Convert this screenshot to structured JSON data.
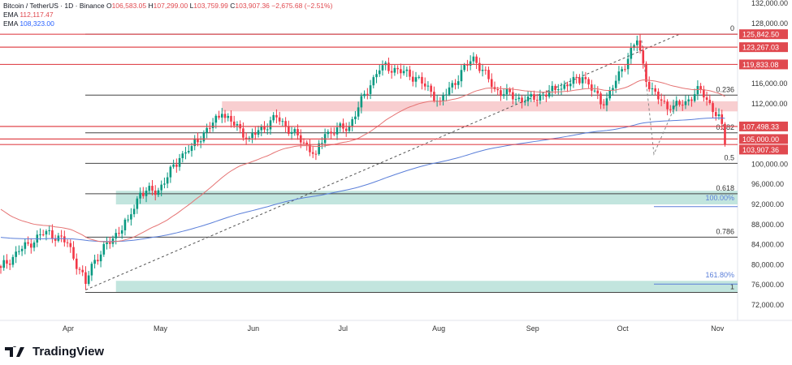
{
  "header": {
    "symbol": "Bitcoin / TetherUS · 1D · Binance",
    "o_label": "O",
    "o": "106,583.05",
    "h_label": "H",
    "h": "107,299.00",
    "l_label": "L",
    "l": "103,759.99",
    "c_label": "C",
    "c": "103,907.36",
    "change": "−2,675.68 (−2.51%)",
    "ema1_label": "EMA",
    "ema1": "112,117.47",
    "ema2_label": "EMA",
    "ema2": "108,323.00"
  },
  "colors": {
    "up": "#089981",
    "down": "#f23645",
    "ema_fast": "#e57373",
    "ema_slow": "#5b7fd9",
    "level": "#e0494f",
    "zone_pink": "#f7c5c8",
    "zone_teal": "#b7e0d8"
  },
  "chart_data": {
    "type": "candlestick",
    "ylim": [
      70000,
      132000
    ],
    "y_ticks": [
      "132,000.00",
      "128,000.00",
      "116,000.00",
      "112,000.00",
      "100,000.00",
      "96,000.00",
      "92,000.00",
      "88,000.00",
      "84,000.00",
      "80,000.00",
      "76,000.00",
      "72,000.00"
    ],
    "x_ticks": [
      {
        "label": "Apr",
        "date": "2025-04-01"
      },
      {
        "label": "May",
        "date": "2025-05-01"
      },
      {
        "label": "Jun",
        "date": "2025-06-01"
      },
      {
        "label": "Jul",
        "date": "2025-07-01"
      },
      {
        "label": "Aug",
        "date": "2025-08-01"
      },
      {
        "label": "Sep",
        "date": "2025-09-01"
      },
      {
        "label": "Oct",
        "date": "2025-10-01"
      },
      {
        "label": "Nov",
        "date": "2025-11-01"
      }
    ],
    "x_range": [
      "2025-03-10",
      "2025-11-06"
    ],
    "approx_closes": [
      [
        "2025-03-10",
        79400
      ],
      [
        "2025-03-16",
        82700
      ],
      [
        "2025-03-25",
        86700
      ],
      [
        "2025-04-01",
        84300
      ],
      [
        "2025-04-07",
        76200
      ],
      [
        "2025-04-09",
        80200
      ],
      [
        "2025-04-21",
        89000
      ],
      [
        "2025-04-25",
        94300
      ],
      [
        "2025-05-01",
        94800
      ],
      [
        "2025-05-08",
        101200
      ],
      [
        "2025-05-12",
        103600
      ],
      [
        "2025-05-22",
        110000
      ],
      [
        "2025-05-31",
        105200
      ],
      [
        "2025-06-09",
        109300
      ],
      [
        "2025-06-22",
        102000
      ],
      [
        "2025-06-25",
        106000
      ],
      [
        "2025-07-03",
        107600
      ],
      [
        "2025-07-11",
        117300
      ],
      [
        "2025-07-14",
        119700
      ],
      [
        "2025-07-25",
        117300
      ],
      [
        "2025-08-02",
        112500
      ],
      [
        "2025-08-13",
        121400
      ],
      [
        "2025-08-20",
        114900
      ],
      [
        "2025-08-30",
        112500
      ],
      [
        "2025-09-10",
        114900
      ],
      [
        "2025-09-18",
        117300
      ],
      [
        "2025-09-25",
        111700
      ],
      [
        "2025-10-01",
        118900
      ],
      [
        "2025-10-06",
        124600
      ],
      [
        "2025-10-10",
        114900
      ],
      [
        "2025-10-17",
        110900
      ],
      [
        "2025-10-22",
        112500
      ],
      [
        "2025-10-27",
        114900
      ],
      [
        "2025-11-03",
        108000
      ],
      [
        "2025-11-04",
        103907
      ]
    ],
    "ema_fast_last": 112117.47,
    "ema_slow_last": 108323.0,
    "price_levels": [
      {
        "value": 125842.5,
        "label": "125,842.50"
      },
      {
        "value": 123267.03,
        "label": "123,267.03"
      },
      {
        "value": 119833.08,
        "label": "119,833.08"
      },
      {
        "value": 107498.33,
        "label": "107,498.33"
      },
      {
        "value": 105000.0,
        "label": "105,000.00"
      },
      {
        "value": 103907.36,
        "label": "103,907.36"
      }
    ],
    "fib": {
      "high": 125842.5,
      "low": 74500,
      "levels": [
        {
          "ratio": 0,
          "label": "0"
        },
        {
          "ratio": 0.236,
          "label": "0.236"
        },
        {
          "ratio": 0.382,
          "label": "0.382"
        },
        {
          "ratio": 0.5,
          "label": "0.5"
        },
        {
          "ratio": 0.618,
          "label": "0.618"
        },
        {
          "ratio": 0.786,
          "label": "0.786"
        },
        {
          "ratio": 1,
          "label": "1"
        }
      ]
    },
    "extension_labels": [
      {
        "value": 92200,
        "label": "100.00%"
      },
      {
        "value": 76800,
        "label": "161.80%"
      }
    ],
    "zones": [
      {
        "from": 110500,
        "to": 112500,
        "start": "2025-05-22",
        "color": "pink"
      },
      {
        "from": 92000,
        "to": 94700,
        "start": "2025-04-17",
        "color": "teal"
      },
      {
        "from": 74500,
        "to": 76800,
        "start": "2025-04-17",
        "color": "teal"
      }
    ],
    "trendline": {
      "from": [
        "2025-04-07",
        75000
      ],
      "to": [
        "2025-10-20",
        125842.5
      ]
    }
  },
  "brand": {
    "name": "TradingView"
  }
}
